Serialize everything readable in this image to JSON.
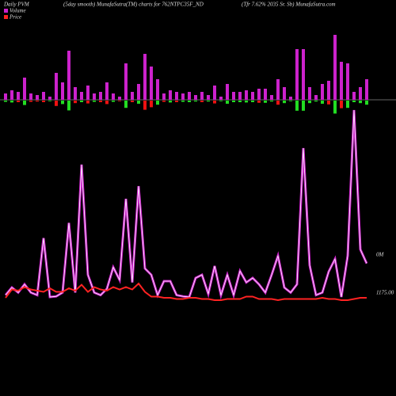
{
  "chart_data": {
    "type": "pvm",
    "title": "Daily PVM",
    "subtitle": "(5day smooth) MunafaSutra(TM) charts for 762NTPC35F_ND",
    "source": "(Tfr 7.62% 2035 Sr. Sb) MunafaSutra.com",
    "volume_label": "0M",
    "price_ticks": [
      {
        "value": 1175,
        "label": "1175.00"
      }
    ],
    "series": [
      {
        "name": "Volume",
        "color": "#cc22cc",
        "values": [
          8,
          12,
          10,
          28,
          8,
          6,
          10,
          4,
          34,
          22,
          62,
          16,
          10,
          18,
          8,
          10,
          22,
          8,
          4,
          46,
          10,
          20,
          58,
          42,
          26,
          8,
          12,
          10,
          8,
          10,
          6,
          10,
          6,
          18,
          4,
          20,
          10,
          10,
          12,
          10,
          14,
          14,
          6,
          26,
          16,
          4,
          64,
          64,
          16,
          6,
          20,
          24,
          82,
          48,
          46,
          10,
          16,
          26
        ],
        "smooth_values": [
          3,
          15,
          7,
          20,
          7,
          3,
          93,
          0,
          1,
          7,
          117,
          7,
          209,
          35,
          7,
          3,
          13,
          47,
          27,
          155,
          23,
          175,
          45,
          35,
          3,
          25,
          25,
          3,
          1,
          0,
          30,
          35,
          5,
          49,
          3,
          35,
          3,
          41,
          23,
          30,
          20,
          7,
          35,
          65,
          15,
          7,
          20,
          235,
          50,
          3,
          7,
          40,
          60,
          0,
          65,
          295,
          75,
          53
        ]
      },
      {
        "name": "Price",
        "color": "#ff2222",
        "values": [
          1171,
          1178,
          1177,
          1180,
          1178,
          1177,
          1176,
          1179,
          1176,
          1176,
          1179,
          1177,
          1182,
          1176,
          1180,
          1178,
          1177,
          1180,
          1178,
          1180,
          1178,
          1183,
          1176,
          1172,
          1172,
          1171,
          1171,
          1170,
          1170,
          1171,
          1171,
          1170,
          1170,
          1169,
          1169,
          1170,
          1170,
          1170,
          1172,
          1172,
          1170,
          1170,
          1170,
          1169,
          1170,
          1170,
          1170,
          1170,
          1170,
          1170,
          1171,
          1170,
          1170,
          1169,
          1169,
          1170,
          1171,
          1171
        ]
      }
    ]
  }
}
